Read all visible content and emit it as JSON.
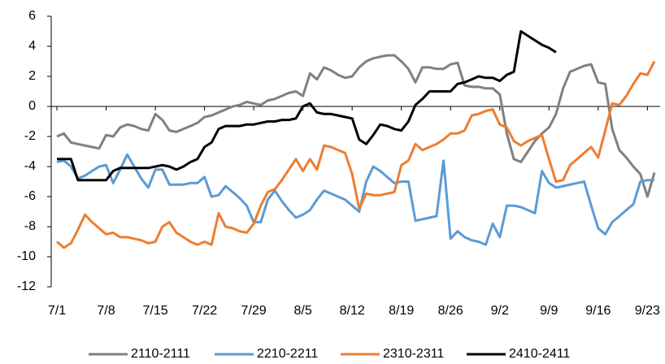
{
  "chart_data": {
    "type": "line",
    "categories": [
      "7/1",
      null,
      null,
      null,
      null,
      null,
      null,
      "7/8",
      null,
      null,
      null,
      null,
      null,
      null,
      "7/15",
      null,
      null,
      null,
      null,
      null,
      null,
      "7/22",
      null,
      null,
      null,
      null,
      null,
      null,
      "7/29",
      null,
      null,
      null,
      null,
      null,
      null,
      "8/5",
      null,
      null,
      null,
      null,
      null,
      null,
      "8/12",
      null,
      null,
      null,
      null,
      null,
      null,
      "8/19",
      null,
      null,
      null,
      null,
      null,
      null,
      "8/26",
      null,
      null,
      null,
      null,
      null,
      null,
      "9/2",
      null,
      null,
      null,
      null,
      null,
      null,
      "9/9",
      null,
      null,
      null,
      null,
      null,
      null,
      "9/16",
      null,
      null,
      null,
      null,
      null,
      null,
      "9/23",
      null
    ],
    "ylim": [
      -12,
      6
    ],
    "yticks": [
      -12,
      -10,
      -8,
      -6,
      -4,
      -2,
      0,
      2,
      4,
      6
    ],
    "grid": false,
    "legend": "bottom",
    "series": [
      {
        "name": "2110-2111",
        "color": "#808080",
        "values": [
          -2.0,
          -1.8,
          -2.4,
          -2.5,
          -2.6,
          -2.7,
          -2.8,
          -1.9,
          -2.0,
          -1.4,
          -1.2,
          -1.3,
          -1.5,
          -1.6,
          -0.5,
          -0.9,
          -1.6,
          -1.7,
          -1.5,
          -1.3,
          -1.1,
          -0.7,
          -0.6,
          -0.4,
          -0.2,
          0.0,
          0.1,
          0.3,
          0.2,
          0.1,
          0.4,
          0.5,
          0.7,
          0.9,
          1.0,
          0.7,
          2.2,
          1.8,
          2.6,
          2.4,
          2.1,
          1.9,
          2.0,
          2.6,
          3.0,
          3.2,
          3.3,
          3.4,
          3.4,
          3.0,
          2.5,
          1.6,
          2.6,
          2.6,
          2.5,
          2.5,
          2.8,
          2.9,
          1.4,
          1.3,
          1.3,
          1.2,
          1.2,
          0.8,
          -1.8,
          -3.5,
          -3.7,
          -3.0,
          -2.3,
          -1.8,
          -1.4,
          -0.5,
          1.2,
          2.3,
          2.5,
          2.7,
          2.8,
          1.6,
          1.5,
          -1.5,
          -2.9,
          -3.4,
          -4.0,
          -4.5,
          -6.0,
          -4.4
        ]
      },
      {
        "name": "2210-2211",
        "color": "#5b9bd5",
        "values": [
          -3.7,
          -3.6,
          -4.0,
          -4.8,
          -4.6,
          -4.3,
          -4.0,
          -3.9,
          -5.1,
          -4.2,
          -3.2,
          -4.0,
          -4.8,
          -5.4,
          -4.2,
          -4.2,
          -5.2,
          -5.2,
          -5.2,
          -5.1,
          -5.1,
          -4.7,
          -6.0,
          -5.9,
          -5.3,
          -5.7,
          -6.1,
          -6.6,
          -7.7,
          -7.7,
          -6.2,
          -5.6,
          -6.3,
          -6.9,
          -7.4,
          -7.2,
          -6.9,
          -6.2,
          -5.6,
          -5.8,
          -6.0,
          -6.2,
          -6.6,
          -7.0,
          -5.0,
          -4.0,
          -4.3,
          -4.7,
          -5.1,
          -5.0,
          -5.0,
          -7.6,
          -7.5,
          -7.4,
          -7.3,
          -3.6,
          -8.8,
          -8.3,
          -8.7,
          -8.9,
          -9.0,
          -9.2,
          -7.8,
          -8.7,
          -6.6,
          -6.6,
          -6.7,
          -6.9,
          -7.1,
          -4.3,
          -5.1,
          -5.4,
          -5.3,
          -5.2,
          -5.1,
          -5.0,
          -6.6,
          -8.1,
          -8.5,
          -7.7,
          -7.3,
          -6.9,
          -6.5,
          -5.0,
          -4.9,
          -4.9
        ]
      },
      {
        "name": "2310-2311",
        "color": "#ed7d31",
        "values": [
          -9.0,
          -9.4,
          -9.1,
          -8.2,
          -7.2,
          -7.7,
          -8.1,
          -8.5,
          -8.4,
          -8.7,
          -8.7,
          -8.8,
          -8.9,
          -9.1,
          -9.0,
          -8.0,
          -7.7,
          -8.4,
          -8.7,
          -9.0,
          -9.2,
          -9.0,
          -9.2,
          -7.1,
          -8.0,
          -8.1,
          -8.3,
          -8.4,
          -7.8,
          -6.6,
          -5.7,
          -5.5,
          -4.9,
          -4.2,
          -3.5,
          -4.3,
          -3.5,
          -4.2,
          -2.6,
          -2.7,
          -2.9,
          -3.1,
          -4.5,
          -6.8,
          -5.8,
          -5.9,
          -5.9,
          -5.8,
          -5.7,
          -3.9,
          -3.6,
          -2.5,
          -2.9,
          -2.7,
          -2.5,
          -2.2,
          -1.8,
          -1.8,
          -1.6,
          -0.6,
          -0.5,
          -0.3,
          -0.2,
          -1.2,
          -1.4,
          -2.3,
          -2.6,
          -2.3,
          -2.1,
          -1.9,
          -3.5,
          -5.0,
          -4.9,
          -3.9,
          -3.5,
          -3.1,
          -2.7,
          -3.4,
          -1.6,
          0.2,
          0.1,
          0.7,
          1.5,
          2.2,
          2.1,
          3.0
        ]
      },
      {
        "name": "2410-2411",
        "color": "#000000",
        "values": [
          -3.5,
          -3.5,
          -3.5,
          -4.9,
          -4.9,
          -4.9,
          -4.9,
          -4.9,
          -4.3,
          -4.1,
          -4.1,
          -4.1,
          -4.1,
          -4.1,
          -4.0,
          -3.9,
          -4.0,
          -4.2,
          -4.0,
          -3.7,
          -3.5,
          -2.7,
          -2.4,
          -1.5,
          -1.3,
          -1.3,
          -1.3,
          -1.2,
          -1.2,
          -1.1,
          -1.0,
          -1.0,
          -0.9,
          -0.9,
          -0.8,
          0.0,
          0.2,
          -0.4,
          -0.5,
          -0.5,
          -0.6,
          -0.7,
          -0.8,
          -2.2,
          -2.5,
          -1.9,
          -1.2,
          -1.3,
          -1.5,
          -1.6,
          -1.0,
          0.1,
          0.5,
          1.0,
          1.0,
          1.0,
          1.0,
          1.5,
          1.6,
          1.8,
          2.0,
          1.9,
          1.9,
          1.7,
          2.1,
          2.3,
          5.0,
          4.7,
          4.4,
          4.1,
          3.9,
          3.6,
          null,
          null,
          null,
          null,
          null,
          null,
          null,
          null,
          null,
          null,
          null,
          null,
          null,
          null
        ]
      }
    ]
  }
}
